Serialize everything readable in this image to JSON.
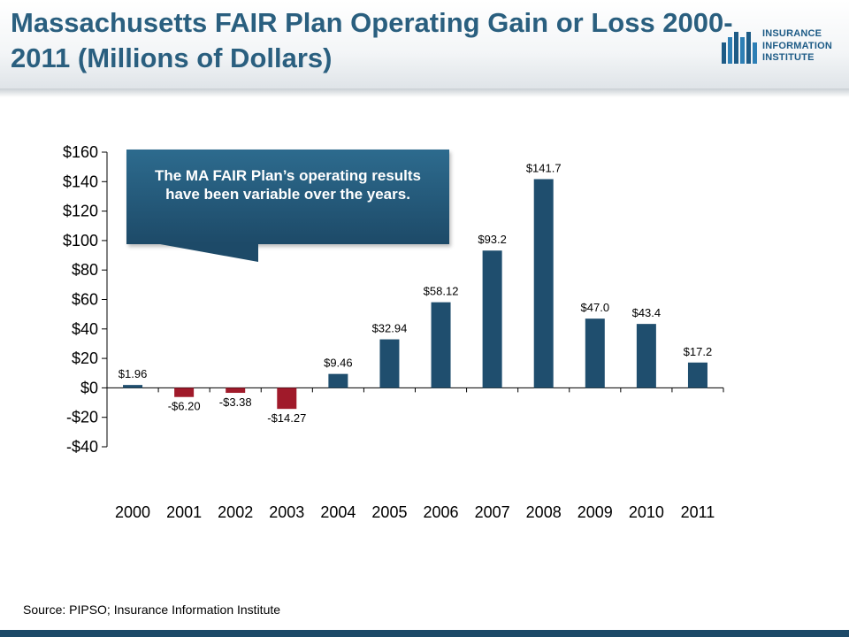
{
  "header": {
    "title": "Massachusetts FAIR Plan Operating Gain or Loss 2000-2011 (Millions of Dollars)",
    "logo_lines": [
      "INSURANCE",
      "INFORMATION",
      "INSTITUTE"
    ]
  },
  "callout": {
    "text": "The MA FAIR Plan’s operating results have been variable over the years."
  },
  "source": "Source: PIPSO; Insurance Information Institute",
  "colors": {
    "positive_bar": "#1f4e6e",
    "negative_bar": "#a01a2a",
    "title": "#2a5f7f"
  },
  "chart_data": {
    "type": "bar",
    "title": "Massachusetts FAIR Plan Operating Gain or Loss 2000-2011 (Millions of Dollars)",
    "xlabel": "",
    "ylabel": "",
    "categories": [
      "2000",
      "2001",
      "2002",
      "2003",
      "2004",
      "2005",
      "2006",
      "2007",
      "2008",
      "2009",
      "2010",
      "2011"
    ],
    "values": [
      1.96,
      -6.2,
      -3.38,
      -14.27,
      9.46,
      32.94,
      58.12,
      93.2,
      141.7,
      47.0,
      43.4,
      17.2
    ],
    "data_labels": [
      "$1.96",
      "-$6.20",
      "-$3.38",
      "-$14.27",
      "$9.46",
      "$32.94",
      "$58.12",
      "$93.2",
      "$141.7",
      "$47.0",
      "$43.4",
      "$17.2"
    ],
    "ylim": [
      -40,
      160
    ],
    "ytick_values": [
      160,
      140,
      120,
      100,
      80,
      60,
      40,
      20,
      0,
      -20,
      -40
    ],
    "ytick_labels": [
      "$160",
      "$140",
      "$120",
      "$100",
      "$80",
      "$60",
      "$40",
      "$20",
      "$0",
      "-$20",
      "-$40"
    ],
    "grid": false,
    "legend": "none"
  }
}
